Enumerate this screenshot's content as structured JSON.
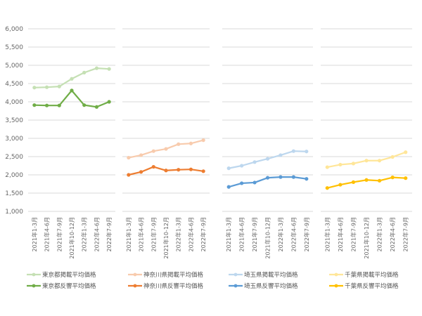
{
  "chart_data": {
    "type": "line",
    "ylim": [
      1000,
      6000
    ],
    "y_ticks": [
      "1,000",
      "1,500",
      "2,000",
      "2,500",
      "3,000",
      "3,500",
      "4,000",
      "4,500",
      "5,000",
      "5,500",
      "6,000"
    ],
    "grid": true,
    "legend_placement": "bottom",
    "categories": [
      "2021年1-3月",
      "2021年4-6月",
      "2021年7-9月",
      "2021年10-12月",
      "2022年1-3月",
      "2022年4-6月",
      "2022年7-9月"
    ],
    "panels": [
      {
        "series": [
          {
            "name": "東京都掲載平均価格",
            "color": "#c5e0b4",
            "values": [
              4390,
              4400,
              4420,
              4630,
              4800,
              4920,
              4900
            ]
          },
          {
            "name": "東京都反響平均価格",
            "color": "#70ad47",
            "values": [
              3910,
              3900,
              3900,
              4310,
              3910,
              3860,
              4000
            ]
          }
        ]
      },
      {
        "series": [
          {
            "name": "神奈川県掲載平均価格",
            "color": "#f8cbad",
            "values": [
              2470,
              2540,
              2650,
              2710,
              2840,
              2860,
              2950
            ]
          },
          {
            "name": "神奈川県反響平均価格",
            "color": "#ed7d31",
            "values": [
              2000,
              2080,
              2220,
              2120,
              2140,
              2150,
              2100
            ]
          }
        ]
      },
      {
        "series": [
          {
            "name": "埼玉県掲載平均価格",
            "color": "#bdd7ee",
            "values": [
              2180,
              2250,
              2350,
              2440,
              2540,
              2650,
              2640
            ]
          },
          {
            "name": "埼玉県反響平均価格",
            "color": "#5b9bd5",
            "values": [
              1670,
              1770,
              1790,
              1920,
              1940,
              1940,
              1890
            ]
          }
        ]
      },
      {
        "series": [
          {
            "name": "千葉県掲載平均価格",
            "color": "#ffe699",
            "values": [
              2210,
              2280,
              2310,
              2390,
              2390,
              2490,
              2620
            ]
          },
          {
            "name": "千葉県反響平均価格",
            "color": "#ffc000",
            "values": [
              1640,
              1730,
              1800,
              1860,
              1840,
              1930,
              1910
            ]
          }
        ]
      }
    ]
  }
}
